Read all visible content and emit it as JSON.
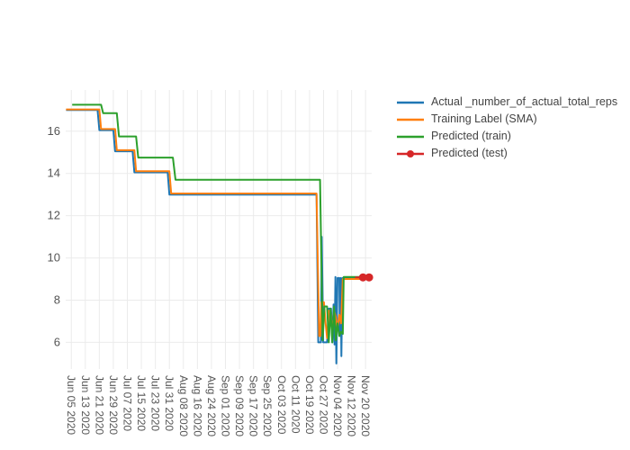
{
  "chart_data": {
    "type": "line",
    "title": "",
    "background": "#ffffff",
    "grid": true,
    "grid_color": "#ebebeb",
    "tick_label_color": "#555555",
    "legend_position": "top-right",
    "x_axis": {
      "label": "",
      "tick_angle_deg": 90,
      "tick_days": [
        0,
        8,
        16,
        24,
        32,
        40,
        48,
        56,
        64,
        72,
        80,
        88,
        96,
        104,
        112,
        120,
        128,
        136,
        144,
        152,
        160,
        168
      ],
      "tick_labels": [
        "Jun 05 2020",
        "Jun 13 2020",
        "Jun 21 2020",
        "Jun 29 2020",
        "Jul 07 2020",
        "Jul 15 2020",
        "Jul 23 2020",
        "Jul 31 2020",
        "Aug 08 2020",
        "Aug 16 2020",
        "Aug 24 2020",
        "Sep 01 2020",
        "Sep 09 2020",
        "Sep 17 2020",
        "Sep 25 2020",
        "Oct 03 2020",
        "Oct 11 2020",
        "Oct 19 2020",
        "Oct 27 2020",
        "Nov 04 2020",
        "Nov 12 2020",
        "Nov 20 2020"
      ],
      "range_days": [
        -3.2,
        171.5
      ]
    },
    "y_axis": {
      "label": "",
      "ticks": [
        6,
        8,
        10,
        12,
        14,
        16
      ],
      "tick_labels": [
        "6",
        "8",
        "10",
        "12",
        "14",
        "16"
      ],
      "range": [
        4.74,
        17.95
      ]
    },
    "series": [
      {
        "name": "Actual _number_of_actual_total_reps",
        "color": "#1f77b4",
        "mode": "lines",
        "points": [
          [
            -3,
            17
          ],
          [
            15,
            17
          ],
          [
            16,
            16.05
          ],
          [
            24,
            16.05
          ],
          [
            25,
            15.05
          ],
          [
            35,
            15.05
          ],
          [
            36,
            14.05
          ],
          [
            55,
            14.05
          ],
          [
            56,
            13
          ],
          [
            140,
            13
          ],
          [
            141,
            6
          ],
          [
            142.5,
            6
          ],
          [
            143,
            11
          ],
          [
            143.8,
            6
          ],
          [
            146,
            6
          ],
          [
            147,
            7.6
          ],
          [
            148.3,
            7.6
          ],
          [
            149,
            6.0
          ],
          [
            149.7,
            7.8
          ],
          [
            150.3,
            5.9
          ],
          [
            150.8,
            9.1
          ],
          [
            151.3,
            5.0
          ],
          [
            152,
            9.05
          ],
          [
            153,
            9.05
          ],
          [
            153.3,
            6.3
          ],
          [
            153.8,
            9.05
          ],
          [
            154.2,
            5.35
          ],
          [
            154.8,
            9.05
          ],
          [
            170,
            9.05
          ]
        ]
      },
      {
        "name": "Training Label (SMA)",
        "color": "#ff7f0e",
        "mode": "lines",
        "points": [
          [
            -3,
            17.03
          ],
          [
            16,
            17.03
          ],
          [
            17,
            16.1
          ],
          [
            25,
            16.1
          ],
          [
            26,
            15.1
          ],
          [
            36,
            15.1
          ],
          [
            37,
            14.1
          ],
          [
            56,
            14.1
          ],
          [
            57,
            13.05
          ],
          [
            140,
            13.05
          ],
          [
            141.5,
            6.3
          ],
          [
            142.2,
            6.3
          ],
          [
            142.8,
            7.9
          ],
          [
            144.2,
            7.9
          ],
          [
            145.2,
            6.9
          ],
          [
            146,
            6.2
          ],
          [
            147,
            7.5
          ],
          [
            148,
            7.5
          ],
          [
            149,
            6.4
          ],
          [
            150,
            7.5
          ],
          [
            151,
            7.2
          ],
          [
            152,
            6.6
          ],
          [
            153,
            7.3
          ],
          [
            154,
            6.9
          ],
          [
            155,
            9.0
          ],
          [
            170,
            9.0
          ]
        ]
      },
      {
        "name": "Predicted (train)",
        "color": "#2ca02c",
        "mode": "lines",
        "points": [
          [
            0.5,
            17.25
          ],
          [
            17,
            17.25
          ],
          [
            18.2,
            16.85
          ],
          [
            26,
            16.85
          ],
          [
            27.2,
            15.75
          ],
          [
            37,
            15.75
          ],
          [
            38.2,
            14.75
          ],
          [
            58,
            14.75
          ],
          [
            59.5,
            13.7
          ],
          [
            142,
            13.7
          ],
          [
            143.5,
            6.1
          ],
          [
            144.5,
            7.7
          ],
          [
            146,
            7.7
          ],
          [
            147,
            6.0
          ],
          [
            148,
            7.6
          ],
          [
            149,
            6.0
          ],
          [
            150,
            7.7
          ],
          [
            151,
            6.1
          ],
          [
            152,
            6.9
          ],
          [
            153,
            6.3
          ],
          [
            154,
            6.5
          ],
          [
            155,
            6.4
          ],
          [
            155.5,
            9.1
          ],
          [
            170,
            9.1
          ]
        ]
      },
      {
        "name": "Predicted (test)",
        "color": "#d62728",
        "mode": "lines+markers",
        "points": [
          [
            162,
            9.08
          ],
          [
            166.5,
            9.08
          ],
          [
            170,
            9.08
          ]
        ],
        "markers": [
          [
            166.5,
            9.08
          ],
          [
            170,
            9.08
          ]
        ]
      }
    ]
  }
}
